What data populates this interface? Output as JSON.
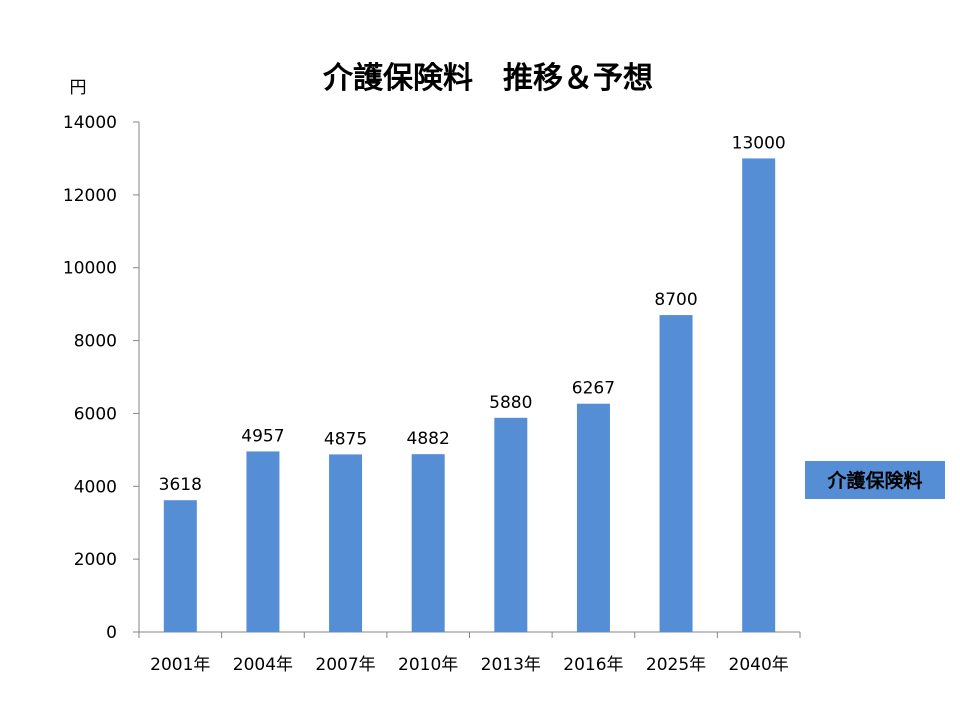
{
  "chart_data": {
    "type": "bar",
    "title": "介護保険料　推移＆予想",
    "ylabel": "円",
    "xlabel": "",
    "categories": [
      "2001年",
      "2004年",
      "2007年",
      "2010年",
      "2013年",
      "2016年",
      "2025年",
      "2040年"
    ],
    "series": [
      {
        "name": "介護保険料",
        "values": [
          3618,
          4957,
          4875,
          4882,
          5880,
          6267,
          8700,
          13000
        ],
        "color": "#558ED5"
      }
    ],
    "ylim": [
      0,
      14000
    ],
    "yticks": [
      "0",
      "2000",
      "4000",
      "6000",
      "8000",
      "10000",
      "12000",
      "14000"
    ],
    "data_labels": [
      "3618",
      "4957",
      "4875",
      "4882",
      "5880",
      "6267",
      "8700",
      "13000"
    ],
    "grid": false,
    "legend_position": "right"
  }
}
